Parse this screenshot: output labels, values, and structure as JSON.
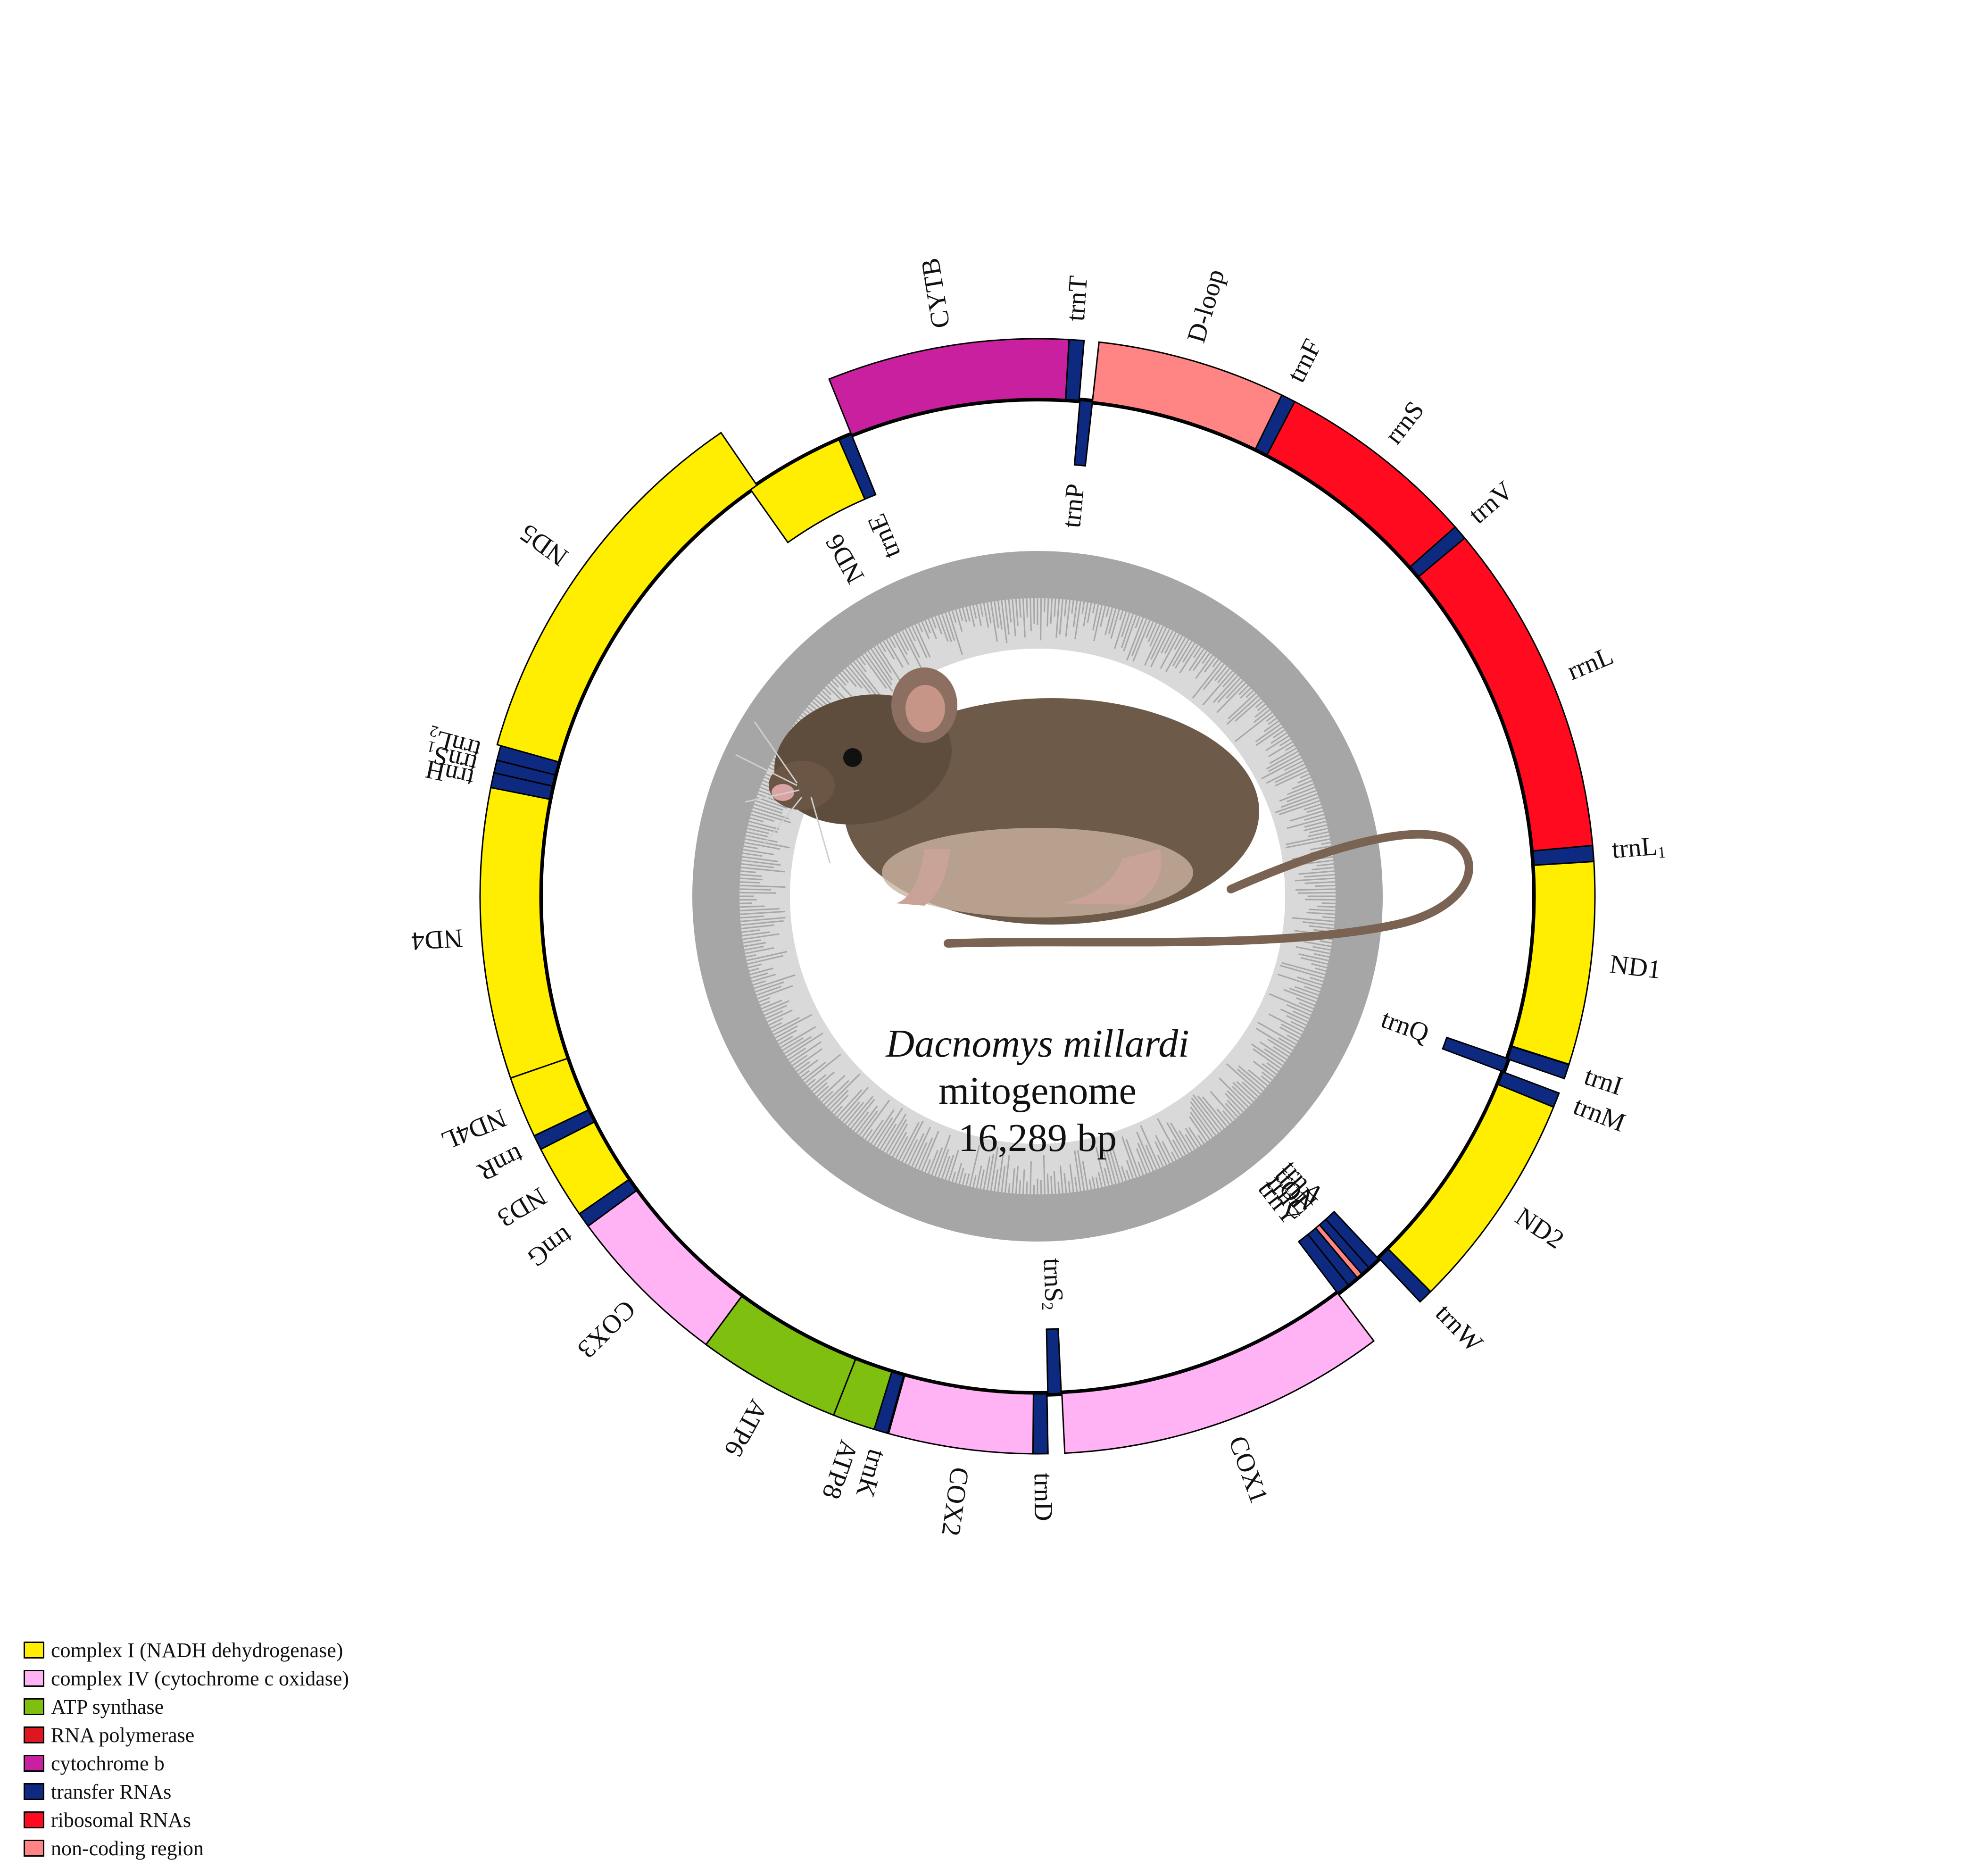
{
  "title": {
    "species": "Dacnomys millardi",
    "kind": "mitogenome",
    "length": "16,289 bp"
  },
  "colors": {
    "complex1": "#FFEE00",
    "complex4": "#FFB3F5",
    "atp": "#7FBF10",
    "rrna": "#FF0A1E",
    "cytb": "#C8209E",
    "trna": "#0D2A80",
    "noncoding": "#FF8585",
    "gc_dark": "#A6A6A6",
    "gc_light": "#D9D9D9"
  },
  "genes": [
    {
      "name": "trnF",
      "label": "trnF",
      "start": 0,
      "end": 68,
      "strand": "H",
      "cls": "trna"
    },
    {
      "name": "rrnS",
      "label": "rrnS",
      "start": 68,
      "end": 1020,
      "strand": "H",
      "cls": "rrna"
    },
    {
      "name": "trnV",
      "label": "trnV",
      "start": 1020,
      "end": 1088,
      "strand": "H",
      "cls": "trna"
    },
    {
      "name": "rrnL",
      "label": "rrnL",
      "start": 1088,
      "end": 2660,
      "strand": "H",
      "cls": "rrna"
    },
    {
      "name": "trnL1",
      "label": "trnL",
      "sub": "1",
      "start": 2660,
      "end": 2735,
      "strand": "H",
      "cls": "trna"
    },
    {
      "name": "ND1",
      "label": "ND1",
      "start": 2735,
      "end": 3690,
      "strand": "H",
      "cls": "complex1"
    },
    {
      "name": "trnI",
      "label": "trnI",
      "start": 3692,
      "end": 3760,
      "strand": "H",
      "cls": "trna"
    },
    {
      "name": "trnQ",
      "label": "trnQ",
      "start": 3758,
      "end": 3830,
      "strand": "L",
      "cls": "trna"
    },
    {
      "name": "trnM",
      "label": "trnM",
      "start": 3832,
      "end": 3902,
      "strand": "H",
      "cls": "trna"
    },
    {
      "name": "ND2",
      "label": "ND2",
      "start": 3902,
      "end": 4940,
      "strand": "H",
      "cls": "complex1"
    },
    {
      "name": "trnW",
      "label": "trnW",
      "start": 4940,
      "end": 5008,
      "strand": "H",
      "cls": "trna"
    },
    {
      "name": "trnA",
      "label": "trnA",
      "start": 5012,
      "end": 5080,
      "strand": "L",
      "cls": "trna"
    },
    {
      "name": "trnN",
      "label": "trnN",
      "start": 5080,
      "end": 5130,
      "strand": "L",
      "cls": "trna"
    },
    {
      "name": "OL",
      "label": "OL",
      "start": 5130,
      "end": 5160,
      "strand": "L",
      "cls": "noncoding"
    },
    {
      "name": "trnC",
      "label": "trnC",
      "start": 5160,
      "end": 5220,
      "strand": "L",
      "cls": "trna"
    },
    {
      "name": "trnY",
      "label": "trnY",
      "start": 5220,
      "end": 5290,
      "strand": "L",
      "cls": "trna"
    },
    {
      "name": "COX1",
      "label": "COX1",
      "start": 5290,
      "end": 6842,
      "strand": "H",
      "cls": "complex4"
    },
    {
      "name": "trnS2",
      "label": "trnS",
      "sub": "2",
      "start": 6845,
      "end": 6915,
      "strand": "L",
      "cls": "trna"
    },
    {
      "name": "trnD",
      "label": "trnD",
      "start": 6920,
      "end": 6990,
      "strand": "H",
      "cls": "trna"
    },
    {
      "name": "COX2",
      "label": "COX2",
      "start": 6990,
      "end": 7670,
      "strand": "H",
      "cls": "complex4"
    },
    {
      "name": "trnK",
      "label": "trnK",
      "start": 7675,
      "end": 7740,
      "strand": "H",
      "cls": "trna"
    },
    {
      "name": "ATP8",
      "label": "ATP8",
      "start": 7740,
      "end": 7940,
      "strand": "H",
      "cls": "atp"
    },
    {
      "name": "ATP6",
      "label": "ATP6",
      "start": 7940,
      "end": 8620,
      "strand": "H",
      "cls": "atp"
    },
    {
      "name": "COX3",
      "label": "COX3",
      "start": 8620,
      "end": 9400,
      "strand": "H",
      "cls": "complex4"
    },
    {
      "name": "trnG",
      "label": "trnG",
      "start": 9400,
      "end": 9470,
      "strand": "H",
      "cls": "trna"
    },
    {
      "name": "ND3",
      "label": "ND3",
      "start": 9470,
      "end": 9820,
      "strand": "H",
      "cls": "complex1"
    },
    {
      "name": "trnR",
      "label": "trnR",
      "start": 9820,
      "end": 9890,
      "strand": "H",
      "cls": "trna"
    },
    {
      "name": "ND4L",
      "label": "ND4L",
      "start": 9890,
      "end": 10180,
      "strand": "H",
      "cls": "complex1"
    },
    {
      "name": "ND4",
      "label": "ND4",
      "start": 10180,
      "end": 11550,
      "strand": "H",
      "cls": "complex1"
    },
    {
      "name": "trnH",
      "label": "trnH",
      "start": 11550,
      "end": 11620,
      "strand": "H",
      "cls": "trna"
    },
    {
      "name": "trnS1",
      "label": "trnS",
      "sub": "1",
      "start": 11620,
      "end": 11680,
      "strand": "H",
      "cls": "trna"
    },
    {
      "name": "trnL2",
      "label": "trnL",
      "sub": "2",
      "start": 11680,
      "end": 11750,
      "strand": "H",
      "cls": "trna"
    },
    {
      "name": "ND5",
      "label": "ND5",
      "start": 11750,
      "end": 13560,
      "strand": "H",
      "cls": "complex1"
    },
    {
      "name": "ND6",
      "label": "ND6",
      "start": 13520,
      "end": 14050,
      "strand": "L",
      "cls": "complex1"
    },
    {
      "name": "trnE",
      "label": "trnE",
      "start": 14050,
      "end": 14120,
      "strand": "L",
      "cls": "trna"
    },
    {
      "name": "CYTB",
      "label": "CYTB",
      "start": 14120,
      "end": 15260,
      "strand": "H",
      "cls": "cytb"
    },
    {
      "name": "trnT",
      "label": "trnT",
      "start": 15260,
      "end": 15330,
      "strand": "H",
      "cls": "trna"
    },
    {
      "name": "trnP",
      "label": "trnP",
      "start": 15335,
      "end": 15400,
      "strand": "L",
      "cls": "trna"
    },
    {
      "name": "D-loop",
      "label": "D-loop",
      "start": 15400,
      "end": 16289,
      "strand": "H",
      "cls": "noncoding"
    }
  ],
  "legend": [
    {
      "label": "complex I (NADH dehydrogenase)",
      "color": "#FFEE00"
    },
    {
      "label": "complex IV (cytochrome c oxidase)",
      "color": "#FFB3F5"
    },
    {
      "label": "ATP synthase",
      "color": "#7FBF10"
    },
    {
      "label": "RNA polymerase",
      "color": "#DD1620"
    },
    {
      "label": "cytochrome b",
      "color": "#C8209E"
    },
    {
      "label": "transfer RNAs",
      "color": "#0D2A80"
    },
    {
      "label": "ribosomal RNAs",
      "color": "#FF0A1E"
    },
    {
      "label": "non-coding region",
      "color": "#FF8585"
    }
  ]
}
